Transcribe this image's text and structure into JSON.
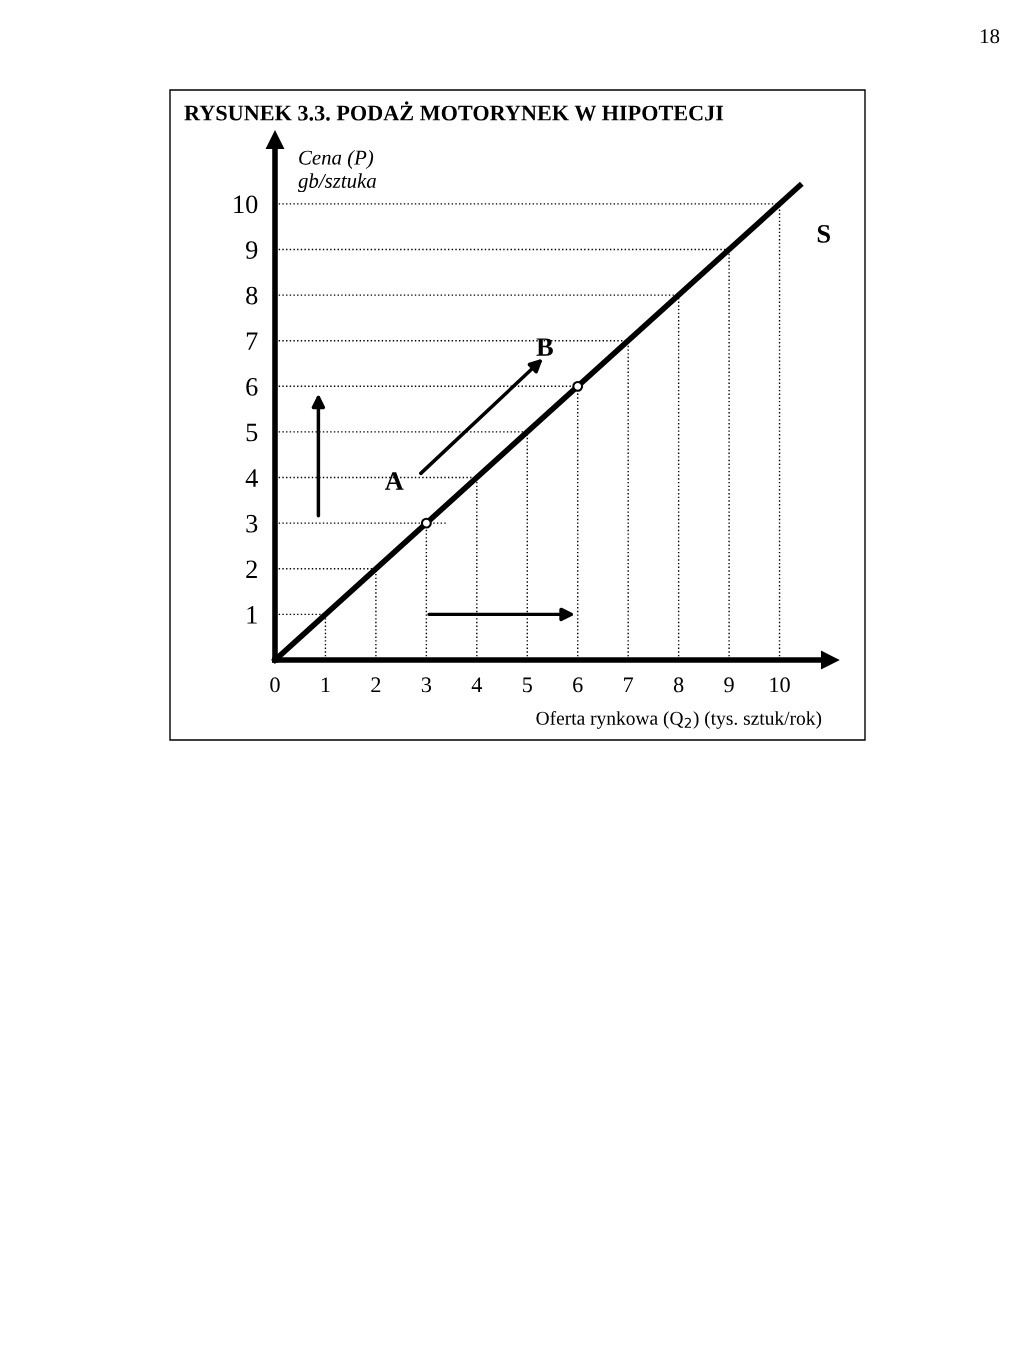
{
  "chart_data": {
    "type": "line",
    "title": "RYSUNEK 3.3. PODAŻ MOTORYNEK W HIPOTECJI",
    "ylabel": "Cena (P)\ngb/sztuka",
    "xlabel": "Oferta rynkowa (Q$_{2}$) (tys. sztuk/rok)",
    "series": [
      {
        "type": "line",
        "color": "#000000",
        "x": [
          0,
          10.4
        ],
        "values": [
          0,
          10.4
        ]
      },
      {
        "type": "scatter",
        "color": "#000000",
        "marker": "circle",
        "x": [
          3,
          6
        ],
        "values": [
          3,
          6
        ]
      },
      {
        "color": "#000000",
        "line_style": "dotted",
        "x": [
          0,
          1
        ],
        "values": [
          1,
          1
        ]
      },
      {
        "color": "#000000",
        "line_style": "dotted",
        "x": [
          0,
          2
        ],
        "values": [
          2,
          2
        ]
      },
      {
        "color": "#000000",
        "line_style": "dotted",
        "x": [
          0,
          3.4
        ],
        "values": [
          3,
          3
        ]
      },
      {
        "color": "#000000",
        "line_style": "dotted",
        "x": [
          0,
          4
        ],
        "values": [
          4,
          4
        ]
      },
      {
        "color": "#000000",
        "line_style": "dotted",
        "x": [
          0,
          5
        ],
        "values": [
          5,
          5
        ]
      },
      {
        "color": "#000000",
        "line_style": "dotted",
        "x": [
          0,
          6
        ],
        "values": [
          6,
          6
        ]
      },
      {
        "color": "#000000",
        "line_style": "dotted",
        "x": [
          0,
          7
        ],
        "values": [
          7,
          7
        ]
      },
      {
        "color": "#000000",
        "line_style": "dotted",
        "x": [
          0,
          8
        ],
        "values": [
          8,
          8
        ]
      },
      {
        "color": "#000000",
        "line_style": "dotted",
        "x": [
          0,
          9
        ],
        "values": [
          9,
          9
        ]
      },
      {
        "color": "#000000",
        "line_style": "dotted",
        "x": [
          0,
          10
        ],
        "values": [
          10,
          10
        ]
      },
      {
        "color": "#000000",
        "line_style": "dotted",
        "x": [
          1,
          1
        ],
        "values": [
          0,
          1
        ]
      },
      {
        "color": "#000000",
        "line_style": "dotted",
        "x": [
          2,
          2
        ],
        "values": [
          0,
          2
        ]
      },
      {
        "color": "#000000",
        "line_style": "dotted",
        "x": [
          3,
          3
        ],
        "values": [
          0,
          3
        ]
      },
      {
        "color": "#000000",
        "line_style": "dotted",
        "x": [
          4,
          4
        ],
        "values": [
          0,
          4
        ]
      },
      {
        "color": "#000000",
        "line_style": "dotted",
        "x": [
          5,
          5
        ],
        "values": [
          0,
          5
        ]
      },
      {
        "color": "#000000",
        "line_style": "dotted",
        "x": [
          6,
          6
        ],
        "values": [
          0,
          6
        ]
      },
      {
        "color": "#000000",
        "line_style": "dotted",
        "x": [
          7,
          7
        ],
        "values": [
          0,
          7
        ]
      },
      {
        "color": "#000000",
        "line_style": "dotted",
        "x": [
          8,
          8
        ],
        "values": [
          0,
          8
        ]
      },
      {
        "color": "#000000",
        "line_style": "dotted",
        "x": [
          9,
          9
        ],
        "values": [
          0,
          9
        ]
      },
      {
        "color": "#000000",
        "line_style": "dotted",
        "x": [
          10,
          10
        ],
        "values": [
          0,
          10
        ]
      }
    ],
    "xlim": [
      0,
      11
    ],
    "ylim": [
      0,
      11.4
    ],
    "xticks": [
      0,
      1,
      2,
      3,
      4,
      5,
      6,
      7,
      8,
      9,
      10
    ],
    "yticks": [
      1,
      2,
      3,
      4,
      5,
      6,
      7,
      8,
      9,
      10
    ],
    "annotations": [
      {
        "text": "S",
        "x": 10.4,
        "y": 10.4
      },
      {
        "text": "A",
        "x": 3,
        "y": 3
      },
      {
        "text": "B",
        "x": 6,
        "y": 6
      },
      "18"
    ]
  }
}
